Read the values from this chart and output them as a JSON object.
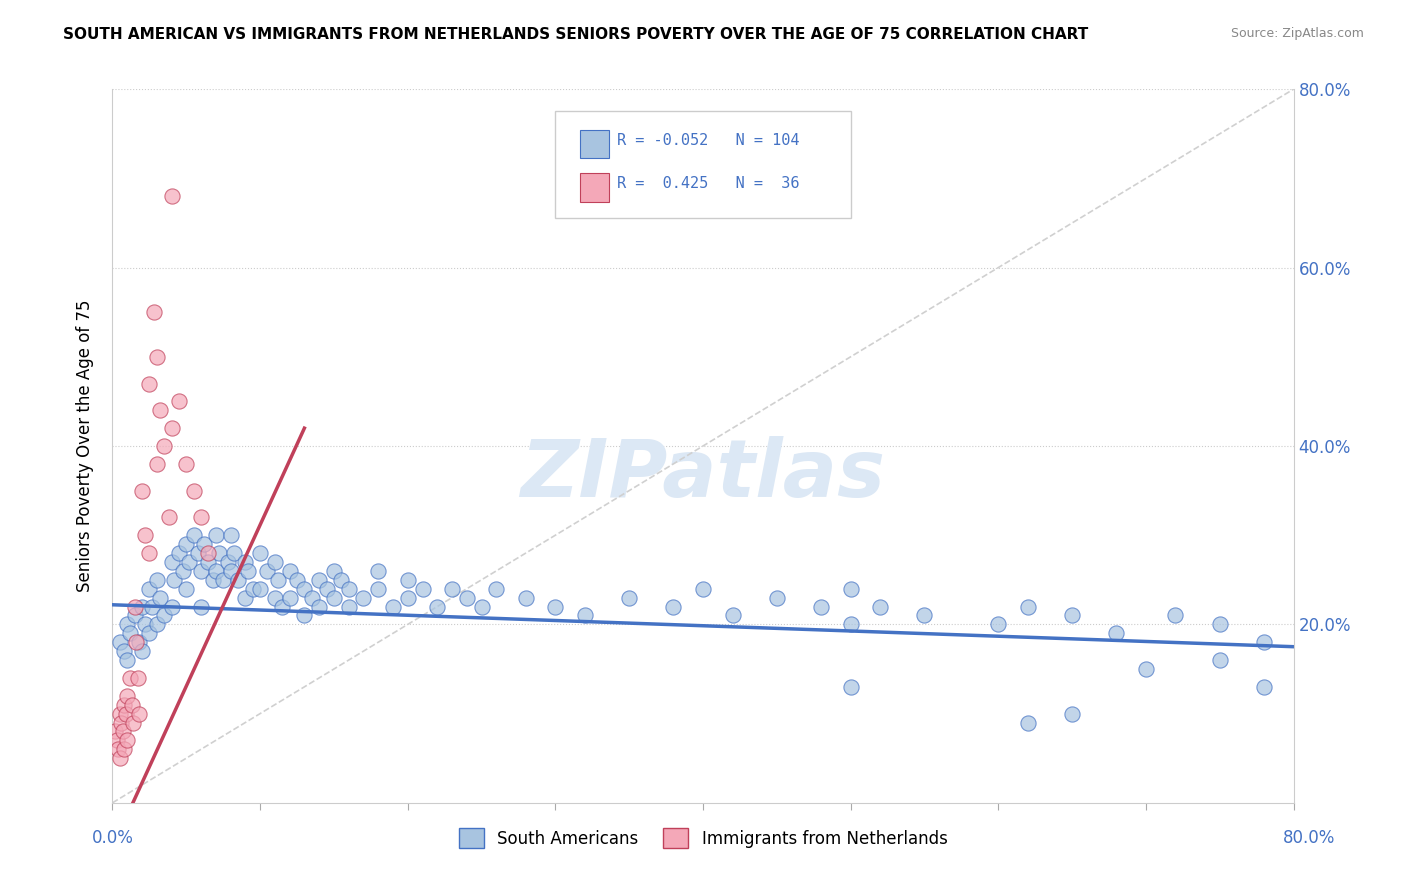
{
  "title": "SOUTH AMERICAN VS IMMIGRANTS FROM NETHERLANDS SENIORS POVERTY OVER THE AGE OF 75 CORRELATION CHART",
  "source": "Source: ZipAtlas.com",
  "ylabel": "Seniors Poverty Over the Age of 75",
  "legend_label1": "South Americans",
  "legend_label2": "Immigrants from Netherlands",
  "R1": -0.052,
  "N1": 104,
  "R2": 0.425,
  "N2": 36,
  "blue_color": "#a8c4e0",
  "pink_color": "#f4a8b8",
  "trend_blue": "#4472c4",
  "trend_pink": "#c0405a",
  "watermark": "ZIPatlas",
  "watermark_color": "#dce8f5",
  "xlim": [
    0,
    0.8
  ],
  "ylim": [
    0,
    0.8
  ],
  "yticks": [
    0.0,
    0.2,
    0.4,
    0.6,
    0.8
  ],
  "sa_x": [
    0.005,
    0.008,
    0.01,
    0.01,
    0.012,
    0.015,
    0.018,
    0.02,
    0.02,
    0.022,
    0.025,
    0.025,
    0.027,
    0.03,
    0.03,
    0.032,
    0.035,
    0.04,
    0.04,
    0.042,
    0.045,
    0.048,
    0.05,
    0.05,
    0.052,
    0.055,
    0.058,
    0.06,
    0.06,
    0.062,
    0.065,
    0.068,
    0.07,
    0.07,
    0.072,
    0.075,
    0.078,
    0.08,
    0.08,
    0.082,
    0.085,
    0.09,
    0.09,
    0.092,
    0.095,
    0.1,
    0.1,
    0.105,
    0.11,
    0.11,
    0.112,
    0.115,
    0.12,
    0.12,
    0.125,
    0.13,
    0.13,
    0.135,
    0.14,
    0.14,
    0.145,
    0.15,
    0.15,
    0.155,
    0.16,
    0.16,
    0.17,
    0.18,
    0.18,
    0.19,
    0.2,
    0.2,
    0.21,
    0.22,
    0.23,
    0.24,
    0.25,
    0.26,
    0.28,
    0.3,
    0.32,
    0.35,
    0.38,
    0.4,
    0.42,
    0.45,
    0.48,
    0.5,
    0.5,
    0.52,
    0.55,
    0.6,
    0.62,
    0.65,
    0.68,
    0.72,
    0.75,
    0.78,
    0.5,
    0.62,
    0.75,
    0.78,
    0.65,
    0.7
  ],
  "sa_y": [
    0.18,
    0.17,
    0.2,
    0.16,
    0.19,
    0.21,
    0.18,
    0.22,
    0.17,
    0.2,
    0.24,
    0.19,
    0.22,
    0.25,
    0.2,
    0.23,
    0.21,
    0.27,
    0.22,
    0.25,
    0.28,
    0.26,
    0.29,
    0.24,
    0.27,
    0.3,
    0.28,
    0.26,
    0.22,
    0.29,
    0.27,
    0.25,
    0.3,
    0.26,
    0.28,
    0.25,
    0.27,
    0.3,
    0.26,
    0.28,
    0.25,
    0.27,
    0.23,
    0.26,
    0.24,
    0.28,
    0.24,
    0.26,
    0.27,
    0.23,
    0.25,
    0.22,
    0.26,
    0.23,
    0.25,
    0.24,
    0.21,
    0.23,
    0.25,
    0.22,
    0.24,
    0.26,
    0.23,
    0.25,
    0.22,
    0.24,
    0.23,
    0.26,
    0.24,
    0.22,
    0.25,
    0.23,
    0.24,
    0.22,
    0.24,
    0.23,
    0.22,
    0.24,
    0.23,
    0.22,
    0.21,
    0.23,
    0.22,
    0.24,
    0.21,
    0.23,
    0.22,
    0.2,
    0.24,
    0.22,
    0.21,
    0.2,
    0.22,
    0.21,
    0.19,
    0.21,
    0.2,
    0.18,
    0.13,
    0.09,
    0.16,
    0.13,
    0.1,
    0.15
  ],
  "nl_x": [
    0.002,
    0.003,
    0.004,
    0.005,
    0.005,
    0.006,
    0.007,
    0.008,
    0.008,
    0.009,
    0.01,
    0.01,
    0.012,
    0.013,
    0.014,
    0.015,
    0.016,
    0.017,
    0.018,
    0.02,
    0.022,
    0.025,
    0.025,
    0.028,
    0.03,
    0.03,
    0.032,
    0.035,
    0.038,
    0.04,
    0.04,
    0.045,
    0.05,
    0.055,
    0.06,
    0.065
  ],
  "nl_y": [
    0.08,
    0.07,
    0.06,
    0.1,
    0.05,
    0.09,
    0.08,
    0.11,
    0.06,
    0.1,
    0.12,
    0.07,
    0.14,
    0.11,
    0.09,
    0.22,
    0.18,
    0.14,
    0.1,
    0.35,
    0.3,
    0.47,
    0.28,
    0.55,
    0.5,
    0.38,
    0.44,
    0.4,
    0.32,
    0.68,
    0.42,
    0.45,
    0.38,
    0.35,
    0.32,
    0.28
  ]
}
